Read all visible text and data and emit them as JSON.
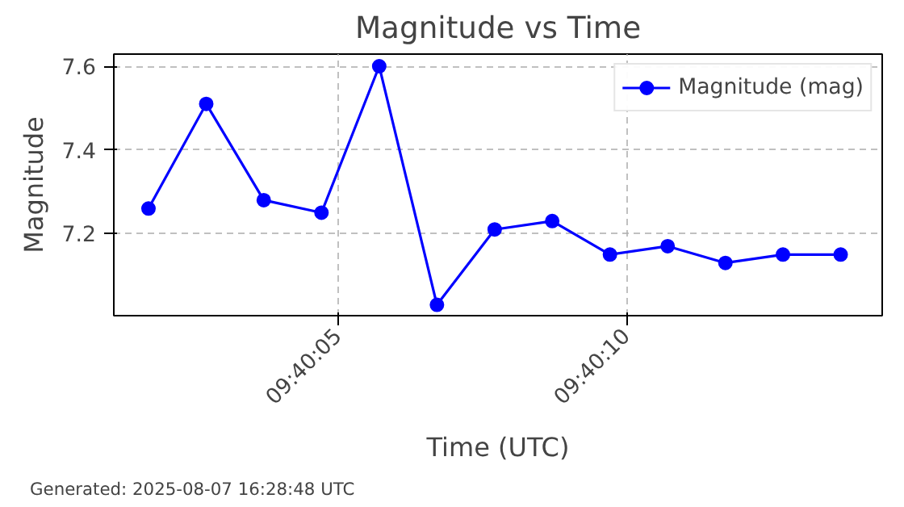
{
  "chart_data": {
    "type": "line",
    "title": "Magnitude vs Time",
    "xlabel": "Time (UTC)",
    "ylabel": "Magnitude",
    "annotations": [
      "Generated: 2025-08-07 16:28:48 UTC"
    ],
    "x": [
      9.667139,
      9.667417,
      9.667694,
      9.667972,
      9.66825,
      9.668528,
      9.668806,
      9.669083,
      9.669361,
      9.669639,
      9.669917,
      9.670194,
      9.670472
    ],
    "series": [
      {
        "name": "Magnitude (mag)",
        "color": "#0000ff",
        "values": [
          7.26,
          7.51,
          7.28,
          7.25,
          7.6,
          7.03,
          7.21,
          7.23,
          7.15,
          7.17,
          7.13,
          7.15,
          7.15
        ]
      }
    ],
    "xlim": [
      9.666972,
      9.670672
    ],
    "xticks": [
      {
        "value": 9.668056,
        "label": "09:40:05"
      },
      {
        "value": 9.669444,
        "label": "09:40:10"
      }
    ],
    "ylim": [
      7.004,
      7.629
    ],
    "yticks": [
      7.2,
      7.4,
      7.6
    ],
    "grid": true,
    "legend": "top right",
    "marker": "circle",
    "line_style": "solid"
  }
}
